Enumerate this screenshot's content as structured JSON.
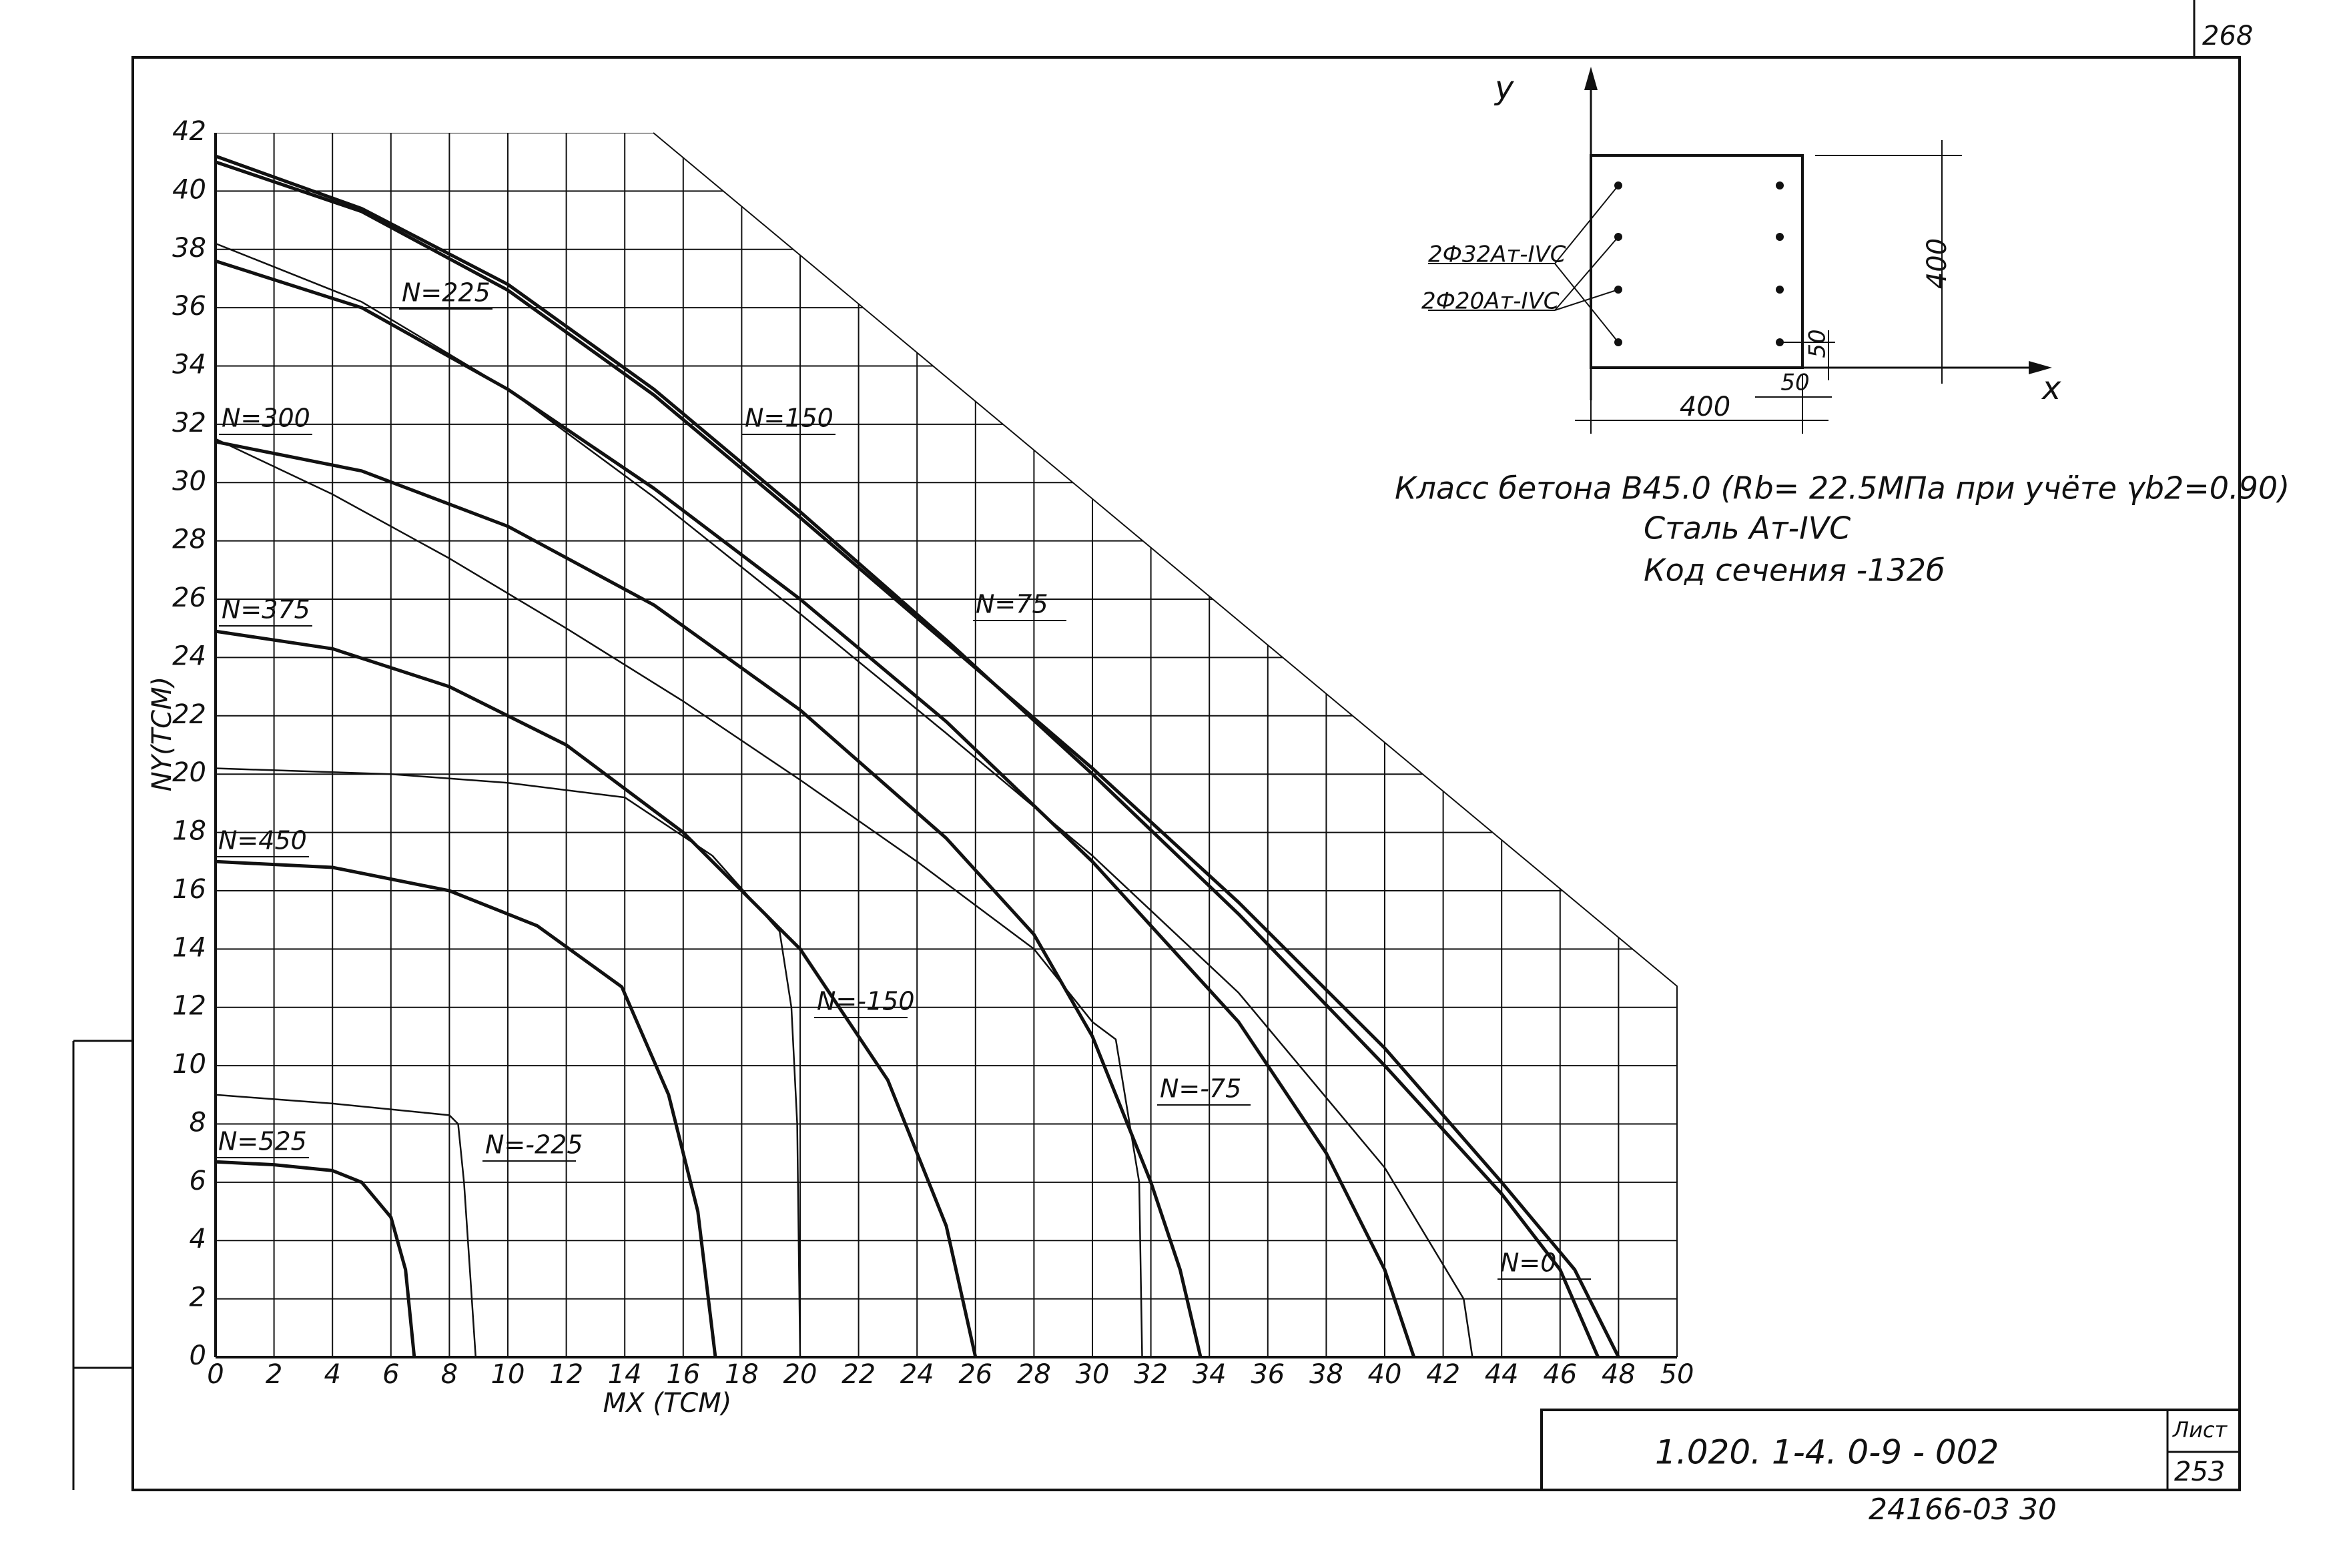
{
  "chart_data": {
    "type": "line",
    "xlabel": "MX (TCM)",
    "ylabel": "NY(TCM)",
    "xlim": [
      0,
      50
    ],
    "ylim": [
      0,
      42
    ],
    "xticks": [
      0,
      2,
      4,
      6,
      8,
      10,
      12,
      14,
      16,
      18,
      20,
      22,
      24,
      26,
      28,
      30,
      32,
      34,
      36,
      38,
      40,
      42,
      44,
      46,
      48,
      50
    ],
    "yticks": [
      0,
      2,
      4,
      6,
      8,
      10,
      12,
      14,
      16,
      18,
      20,
      22,
      24,
      26,
      28,
      30,
      32,
      34,
      36,
      38,
      40,
      42
    ],
    "grid": true,
    "series": [
      {
        "name": "N=150",
        "color": "#111111",
        "linewidth": 2,
        "x": [
          0,
          5,
          10,
          15,
          20,
          25,
          30,
          35,
          40,
          44,
          46,
          47.3
        ],
        "values": [
          41.2,
          39.4,
          36.8,
          33.2,
          29,
          24.6,
          20,
          15.2,
          10,
          5.6,
          3,
          0
        ]
      },
      {
        "name": "N=75",
        "color": "#111111",
        "linewidth": 2,
        "x": [
          0,
          5,
          10,
          15,
          20,
          25,
          30,
          35,
          40,
          44,
          46.5,
          48
        ],
        "values": [
          41,
          39.3,
          36.6,
          33,
          28.8,
          24.5,
          20.2,
          15.6,
          10.6,
          6,
          3,
          0
        ]
      },
      {
        "name": "N=0",
        "color": "#111111",
        "linewidth": 1,
        "x": [
          0,
          5,
          10,
          15,
          20,
          25,
          30,
          35,
          40,
          42.7,
          43
        ],
        "values": [
          38.2,
          36.2,
          33.2,
          29.5,
          25.5,
          21.4,
          17.2,
          12.5,
          6.5,
          2,
          0
        ]
      },
      {
        "name": "N=225",
        "color": "#111111",
        "linewidth": 2,
        "x": [
          0,
          5,
          10,
          15,
          20,
          25,
          30,
          35,
          38,
          40,
          41
        ],
        "values": [
          37.6,
          36,
          33.2,
          29.8,
          26,
          21.8,
          17,
          11.5,
          7,
          3,
          0
        ]
      },
      {
        "name": "N=300",
        "color": "#111111",
        "linewidth": 2,
        "x": [
          0,
          5,
          10,
          15,
          20,
          25,
          28,
          30,
          32,
          33,
          33.7
        ],
        "values": [
          31.4,
          30.4,
          28.5,
          25.8,
          22.2,
          17.8,
          14.5,
          11,
          6,
          3,
          0
        ]
      },
      {
        "name": "N=-75",
        "color": "#111111",
        "linewidth": 1,
        "x": [
          0,
          4,
          8,
          12,
          16,
          20,
          24,
          28,
          30,
          30.8,
          31.6,
          31.7
        ],
        "values": [
          31.5,
          29.6,
          27.4,
          25,
          22.5,
          19.8,
          17,
          14,
          11.5,
          10.9,
          6,
          0
        ]
      },
      {
        "name": "N=375",
        "color": "#111111",
        "linewidth": 2,
        "x": [
          0,
          4,
          8,
          12,
          16,
          20,
          23,
          25,
          26
        ],
        "values": [
          24.9,
          24.3,
          23,
          21,
          18,
          14,
          9.5,
          4.5,
          0
        ]
      },
      {
        "name": "N=-150",
        "color": "#111111",
        "linewidth": 1,
        "x": [
          0,
          6,
          10,
          14,
          17,
          19.3,
          19.7,
          19.9,
          20
        ],
        "values": [
          20.2,
          20,
          19.7,
          19.2,
          17.2,
          14.6,
          12,
          8,
          0
        ]
      },
      {
        "name": "N=450",
        "color": "#111111",
        "linewidth": 2,
        "x": [
          0,
          4,
          8,
          11,
          13.9,
          15.5,
          16.5,
          17.1
        ],
        "values": [
          17,
          16.8,
          16,
          14.8,
          12.7,
          9,
          5,
          0
        ]
      },
      {
        "name": "N=-225",
        "color": "#111111",
        "linewidth": 1,
        "x": [
          0,
          4,
          8,
          8.3,
          8.5,
          8.7,
          8.9
        ],
        "values": [
          9,
          8.7,
          8.3,
          8,
          6,
          3,
          0
        ]
      },
      {
        "name": "N=525",
        "color": "#111111",
        "linewidth": 2,
        "x": [
          0,
          2,
          4,
          5,
          6,
          6.5,
          6.8
        ],
        "values": [
          6.7,
          6.6,
          6.4,
          6,
          4.8,
          3,
          0
        ]
      }
    ]
  },
  "drawing": {
    "sheet_number": "268",
    "section": {
      "y_axis": "y",
      "x_axis": "x",
      "height": "400",
      "width": "400",
      "cover_v": "50",
      "cover_h": "50",
      "bars_top": "2Ф32Ат-IVC",
      "bars_bottom": "2Ф20Ат-IVC"
    },
    "notes": [
      "Класс бетона В45.0 (Rb= 22.5МПа при учёте γb2=0.90)",
      "Сталь Ат-IVC",
      "Код сечения -132б"
    ],
    "stamp": {
      "code": "1.020. 1-4.   0-9 - 002",
      "sheet_label": "Лист",
      "sheet": "253"
    },
    "footer": "24166-03   30"
  }
}
